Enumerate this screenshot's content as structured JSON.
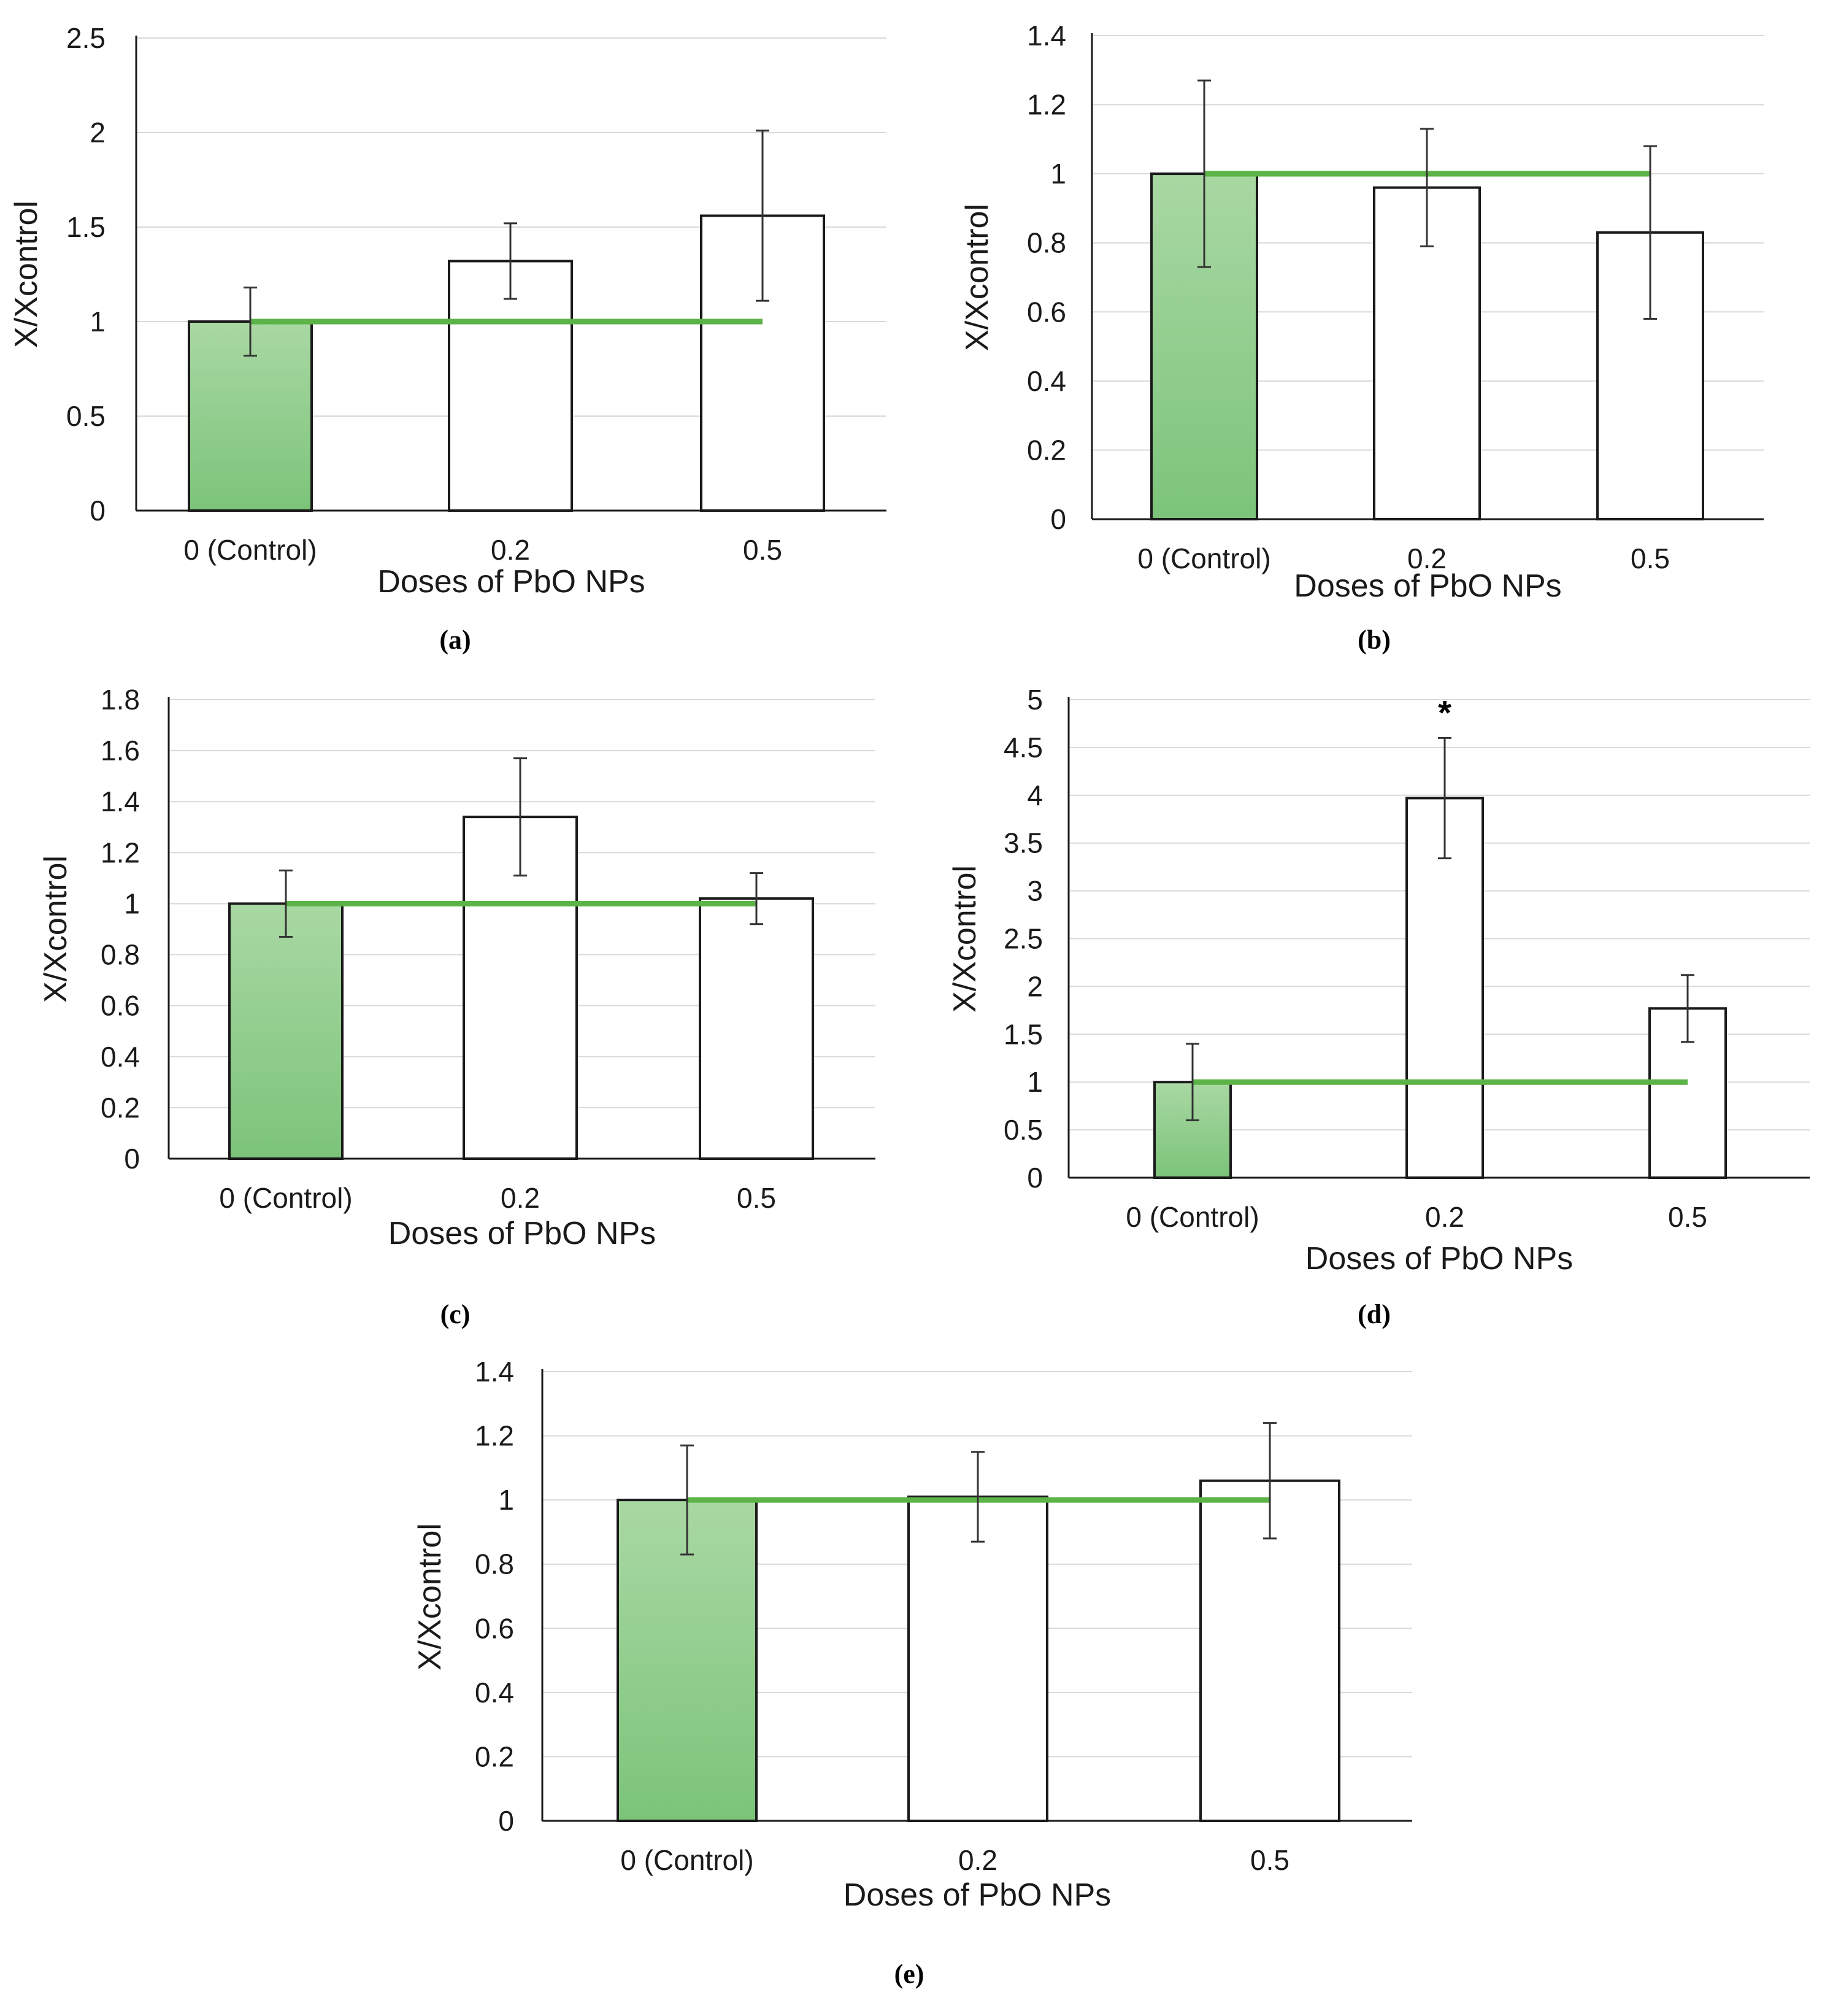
{
  "colors": {
    "control_fill": "#7cc47a",
    "ref_line": "#5cb347",
    "grid": "#d9d9d9",
    "bar_stroke": "#1a1a1a",
    "err": "#333333"
  },
  "chart_data": [
    {
      "id": "a",
      "type": "bar",
      "label": "(a)",
      "categories": [
        "0 (Control)",
        "0.2",
        "0.5"
      ],
      "values": [
        1.0,
        1.32,
        1.56
      ],
      "errors": [
        0.18,
        0.2,
        0.45
      ],
      "xlabel": "Doses of PbO NPs",
      "ylabel": "X/Xcontrol",
      "ylim": [
        0,
        2.5
      ],
      "yticks": [
        "0",
        "0.5",
        "1",
        "1.5",
        "2",
        "2.5"
      ],
      "reference_line": 1,
      "annotations": []
    },
    {
      "id": "b",
      "type": "bar",
      "label": "(b)",
      "categories": [
        "0 (Control)",
        "0.2",
        "0.5"
      ],
      "values": [
        1.0,
        0.96,
        0.83
      ],
      "errors": [
        0.27,
        0.17,
        0.25
      ],
      "xlabel": "Doses of PbO NPs",
      "ylabel": "X/Xcontrol",
      "ylim": [
        0,
        1.4
      ],
      "yticks": [
        "0",
        "0.2",
        "0.4",
        "0.6",
        "0.8",
        "1",
        "1.2",
        "1.4"
      ],
      "reference_line": 1,
      "annotations": []
    },
    {
      "id": "c",
      "type": "bar",
      "label": "(c)",
      "categories": [
        "0 (Control)",
        "0.2",
        "0.5"
      ],
      "values": [
        1.0,
        1.34,
        1.02
      ],
      "errors": [
        0.13,
        0.23,
        0.1
      ],
      "xlabel": "Doses of PbO NPs",
      "ylabel": "X/Xcontrol",
      "ylim": [
        0,
        1.8
      ],
      "yticks": [
        "0",
        "0.2",
        "0.4",
        "0.6",
        "0.8",
        "1",
        "1.2",
        "1.4",
        "1.6",
        "1.8"
      ],
      "reference_line": 1,
      "annotations": []
    },
    {
      "id": "d",
      "type": "bar",
      "label": "(d)",
      "categories": [
        "0 (Control)",
        "0.2",
        "0.5"
      ],
      "values": [
        1.0,
        3.97,
        1.77
      ],
      "errors": [
        0.4,
        0.63,
        0.35
      ],
      "xlabel": "Doses of PbO NPs",
      "ylabel": "X/Xcontrol",
      "ylim": [
        0,
        5
      ],
      "yticks": [
        "0",
        "0.5",
        "1",
        "1.5",
        "2",
        "2.5",
        "3",
        "3.5",
        "4",
        "4.5",
        "5"
      ],
      "reference_line": 1,
      "annotations": [
        {
          "category_index": 1,
          "text": "*"
        }
      ]
    },
    {
      "id": "e",
      "type": "bar",
      "label": "(e)",
      "categories": [
        "0 (Control)",
        "0.2",
        "0.5"
      ],
      "values": [
        1.0,
        1.01,
        1.06
      ],
      "errors": [
        0.17,
        0.14,
        0.18
      ],
      "xlabel": "Doses of PbO NPs",
      "ylabel": "X/Xcontrol",
      "ylim": [
        0,
        1.4
      ],
      "yticks": [
        "0",
        "0.2",
        "0.4",
        "0.6",
        "0.8",
        "1",
        "1.2",
        "1.4"
      ],
      "reference_line": 1,
      "annotations": []
    }
  ]
}
